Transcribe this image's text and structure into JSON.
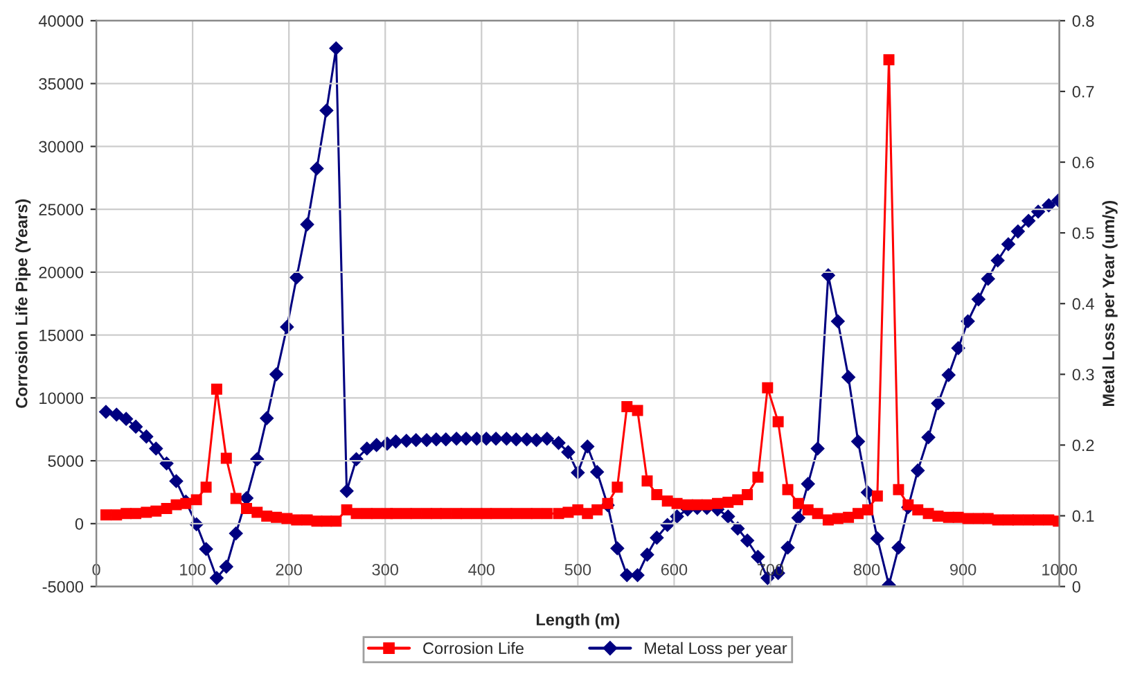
{
  "chart_data": {
    "type": "line",
    "xlabel": "Length (m)",
    "ylabel": "Corrosion Life Pipe (Years)",
    "y2label": "Metal Loss per Year (um/y)",
    "x": [
      10,
      21,
      31,
      41,
      52,
      62,
      73,
      83,
      93,
      104,
      114,
      125,
      135,
      145,
      156,
      167,
      177,
      187,
      198,
      208,
      219,
      229,
      239,
      249,
      260,
      270,
      281,
      291,
      302,
      311,
      322,
      332,
      343,
      353,
      363,
      374,
      384,
      395,
      405,
      415,
      426,
      436,
      447,
      457,
      468,
      480,
      490,
      500,
      510,
      520,
      531,
      541,
      551,
      562,
      572,
      582,
      593,
      603,
      614,
      624,
      634,
      645,
      656,
      666,
      676,
      687,
      697,
      708,
      718,
      729,
      739,
      749,
      760,
      770,
      781,
      791,
      801,
      811,
      823,
      833,
      843,
      853,
      864,
      874,
      885,
      895,
      905,
      916,
      926,
      936,
      947,
      957,
      968,
      978,
      989,
      999
    ],
    "series": [
      {
        "name": "Corrosion Life",
        "color": "#ff0000",
        "marker": "square",
        "values": [
          700,
          700,
          800,
          800,
          900,
          1000,
          1200,
          1500,
          1600,
          1900,
          2900,
          10700,
          5200,
          2000,
          1200,
          900,
          600,
          500,
          400,
          300,
          300,
          200,
          200,
          200,
          1100,
          800,
          800,
          800,
          800,
          800,
          800,
          800,
          800,
          800,
          800,
          800,
          800,
          800,
          800,
          800,
          800,
          800,
          800,
          800,
          800,
          800,
          900,
          1100,
          800,
          1100,
          1600,
          2900,
          9300,
          9000,
          3400,
          2300,
          1800,
          1600,
          1500,
          1500,
          1500,
          1600,
          1700,
          1900,
          2300,
          3700,
          10800,
          8100,
          2700,
          1600,
          1100,
          800,
          300,
          400,
          500,
          800,
          1100,
          2200,
          36900,
          2700,
          1500,
          1100,
          800,
          600,
          500,
          500,
          400,
          400,
          400,
          300,
          300,
          300,
          300,
          300,
          300,
          200
        ]
      },
      {
        "name": "Metal Loss per year",
        "color": "#000080",
        "marker": "diamond",
        "axis": "y2",
        "values": [
          0.247,
          0.243,
          0.237,
          0.226,
          0.212,
          0.195,
          0.174,
          0.149,
          0.12,
          0.088,
          0.053,
          0.012,
          0.028,
          0.075,
          0.125,
          0.18,
          0.238,
          0.3,
          0.367,
          0.437,
          0.512,
          0.591,
          0.673,
          0.761,
          0.135,
          0.18,
          0.195,
          0.2,
          0.202,
          0.205,
          0.206,
          0.207,
          0.207,
          0.208,
          0.208,
          0.209,
          0.209,
          0.209,
          0.209,
          0.209,
          0.209,
          0.208,
          0.208,
          0.207,
          0.209,
          0.203,
          0.19,
          0.161,
          0.198,
          0.162,
          0.115,
          0.054,
          0.016,
          0.016,
          0.045,
          0.069,
          0.087,
          0.099,
          0.109,
          0.111,
          0.111,
          0.109,
          0.099,
          0.082,
          0.065,
          0.042,
          0.012,
          0.019,
          0.055,
          0.097,
          0.145,
          0.195,
          0.44,
          0.375,
          0.296,
          0.205,
          0.133,
          0.068,
          0.002,
          0.055,
          0.112,
          0.164,
          0.211,
          0.259,
          0.299,
          0.337,
          0.375,
          0.406,
          0.435,
          0.461,
          0.484,
          0.502,
          0.517,
          0.53,
          0.539,
          0.546
        ]
      }
    ],
    "xlim": [
      0,
      1000
    ],
    "xticks": [
      0,
      100,
      200,
      300,
      400,
      500,
      600,
      700,
      800,
      900,
      1000
    ],
    "ylim": [
      -5000,
      40000
    ],
    "yticks": [
      -5000,
      0,
      5000,
      10000,
      15000,
      20000,
      25000,
      30000,
      35000,
      40000
    ],
    "y2lim": [
      0,
      0.8
    ],
    "y2ticks": [
      0,
      0.1,
      0.2,
      0.3,
      0.4,
      0.5,
      0.6,
      0.7,
      0.8
    ],
    "grid": true,
    "legend": "bottom",
    "line_style": "solid"
  }
}
